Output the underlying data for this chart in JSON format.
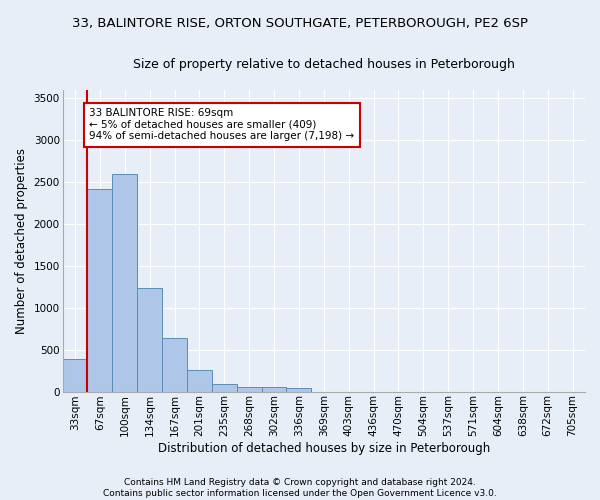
{
  "title_line1": "33, BALINTORE RISE, ORTON SOUTHGATE, PETERBOROUGH, PE2 6SP",
  "title_line2": "Size of property relative to detached houses in Peterborough",
  "xlabel": "Distribution of detached houses by size in Peterborough",
  "ylabel": "Number of detached properties",
  "footnote1": "Contains HM Land Registry data © Crown copyright and database right 2024.",
  "footnote2": "Contains public sector information licensed under the Open Government Licence v3.0.",
  "annotation_title": "33 BALINTORE RISE: 69sqm",
  "annotation_line1": "← 5% of detached houses are smaller (409)",
  "annotation_line2": "94% of semi-detached houses are larger (7,198) →",
  "bar_labels": [
    "33sqm",
    "67sqm",
    "100sqm",
    "134sqm",
    "167sqm",
    "201sqm",
    "235sqm",
    "268sqm",
    "302sqm",
    "336sqm",
    "369sqm",
    "403sqm",
    "436sqm",
    "470sqm",
    "504sqm",
    "537sqm",
    "571sqm",
    "604sqm",
    "638sqm",
    "672sqm",
    "705sqm"
  ],
  "bar_values": [
    390,
    2420,
    2600,
    1230,
    640,
    255,
    95,
    60,
    55,
    45,
    0,
    0,
    0,
    0,
    0,
    0,
    0,
    0,
    0,
    0,
    0
  ],
  "bar_color": "#aec6e8",
  "bar_edge_color": "#5b8db8",
  "vline_color": "#cc0000",
  "annotation_box_color": "#cc0000",
  "background_color": "#e8eef8",
  "grid_color": "#ffffff",
  "ylim": [
    0,
    3600
  ],
  "yticks": [
    0,
    500,
    1000,
    1500,
    2000,
    2500,
    3000,
    3500
  ],
  "title_fontsize": 9.5,
  "subtitle_fontsize": 9.0,
  "xlabel_fontsize": 8.5,
  "ylabel_fontsize": 8.5,
  "tick_fontsize": 7.5,
  "annotation_fontsize": 7.5,
  "footnote_fontsize": 6.5
}
